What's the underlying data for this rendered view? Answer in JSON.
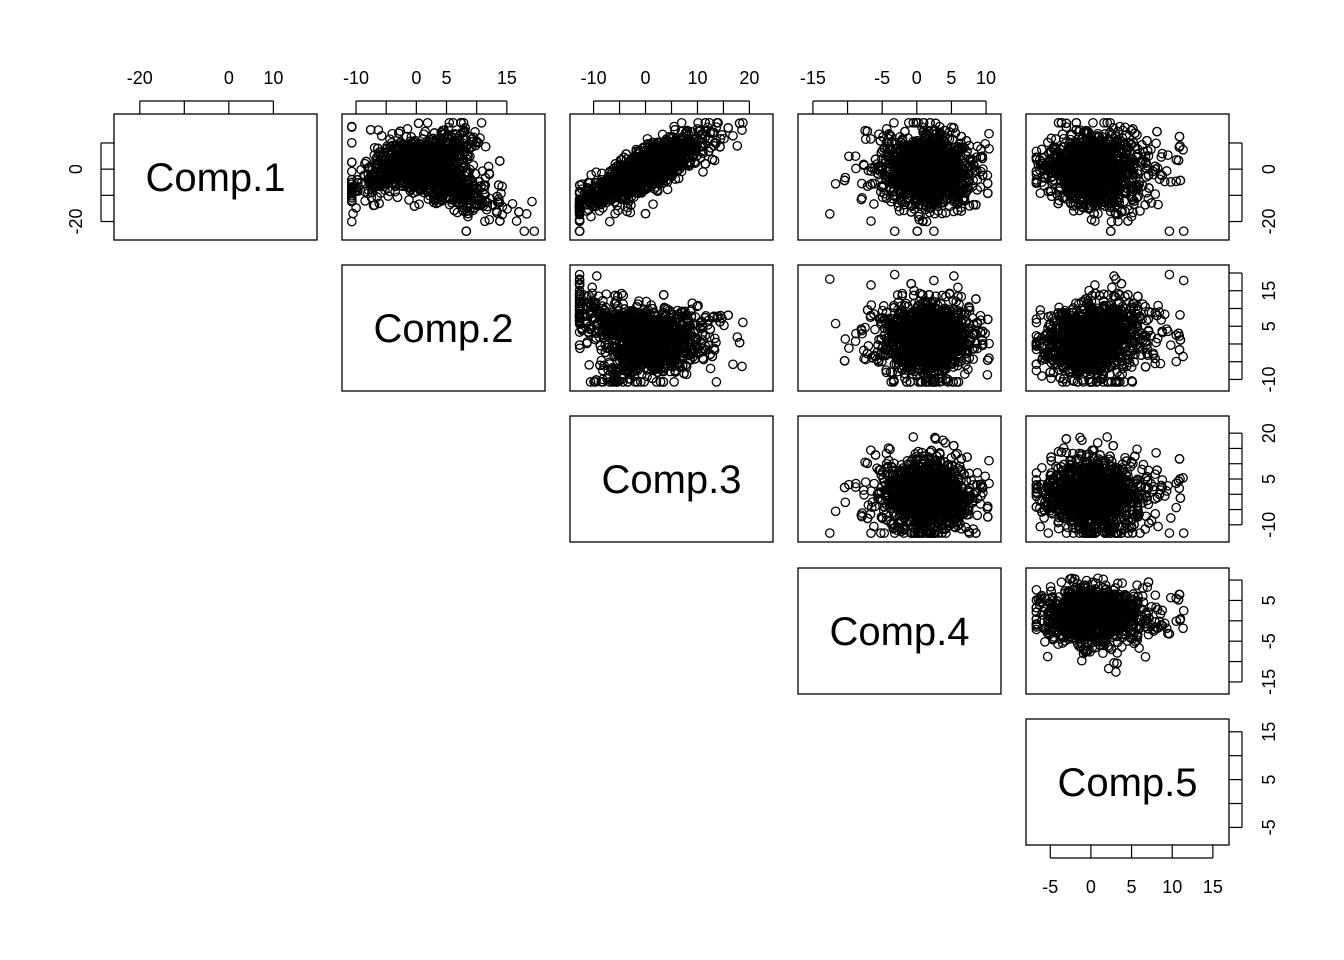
{
  "chart_data": {
    "type": "scatter",
    "plot_kind": "pairs (upper panels only)",
    "variables": [
      {
        "name": "Comp.1",
        "range": [
          -24,
          18
        ]
      },
      {
        "name": "Comp.2",
        "range": [
          -11,
          20
        ]
      },
      {
        "name": "Comp.3",
        "range": [
          -13,
          23
        ]
      },
      {
        "name": "Comp.4",
        "range": [
          -16,
          11
        ]
      },
      {
        "name": "Comp.5",
        "range": [
          -7,
          16
        ]
      }
    ],
    "tick_labels": {
      "Comp.1": [
        "-20",
        "0",
        "10"
      ],
      "Comp.2": [
        "-10",
        "0",
        "5",
        "15"
      ],
      "Comp.3": [
        "-10",
        "0",
        "10",
        "20"
      ],
      "Comp.4": [
        "-15",
        "-5",
        "0",
        "5",
        "10"
      ],
      "Comp.5": [
        "-5",
        "0",
        "5",
        "10",
        "15"
      ],
      "right_Comp.1": [
        "0",
        "-20"
      ],
      "right_Comp.2": [
        "15",
        "5",
        "-10"
      ],
      "right_Comp.3": [
        "20",
        "5",
        "-10"
      ],
      "right_Comp.4": [
        "5",
        "-5",
        "-15"
      ],
      "right_Comp.5": [
        "15",
        "5",
        "-5"
      ]
    },
    "tick_values": {
      "Comp.1": [
        -20,
        -10,
        0,
        10
      ],
      "Comp.2": [
        -10,
        -5,
        0,
        5,
        10,
        15
      ],
      "Comp.3": [
        -10,
        -5,
        0,
        5,
        10,
        15,
        20
      ],
      "Comp.4": [
        -15,
        -10,
        -5,
        0,
        5,
        10
      ],
      "Comp.5": [
        -5,
        0,
        5,
        10,
        15
      ]
    },
    "right_tick_values": {
      "Comp.1": [
        10,
        0,
        -10,
        -20
      ],
      "Comp.2": [
        20,
        15,
        10,
        5,
        0,
        -5,
        -10
      ],
      "Comp.3": [
        20,
        15,
        10,
        5,
        0,
        -5,
        -10
      ],
      "Comp.4": [
        10,
        5,
        0,
        -5,
        -10,
        -15
      ],
      "Comp.5": [
        15,
        10,
        5,
        0,
        -5
      ]
    },
    "n_points_per_panel": 1500,
    "point_shape": "open circle",
    "pair_correlations": [
      {
        "pair": [
          "Comp.1",
          "Comp.2"
        ],
        "pattern": "sideways V / chevron"
      },
      {
        "pair": [
          "Comp.1",
          "Comp.3"
        ],
        "pattern": "positive S-shaped"
      },
      {
        "pair": [
          "Comp.1",
          "Comp.4"
        ],
        "pattern": "dense rectangular blob"
      },
      {
        "pair": [
          "Comp.1",
          "Comp.5"
        ],
        "pattern": "hourglass"
      },
      {
        "pair": [
          "Comp.2",
          "Comp.3"
        ],
        "pattern": "funnel, dense at top"
      },
      {
        "pair": [
          "Comp.2",
          "Comp.4"
        ],
        "pattern": "rectangular blob"
      },
      {
        "pair": [
          "Comp.2",
          "Comp.5"
        ],
        "pattern": "curved positive"
      },
      {
        "pair": [
          "Comp.3",
          "Comp.4"
        ],
        "pattern": "slight negative"
      },
      {
        "pair": [
          "Comp.3",
          "Comp.5"
        ],
        "pattern": "blob, upper tail"
      },
      {
        "pair": [
          "Comp.4",
          "Comp.5"
        ],
        "pattern": "blob, right tail"
      }
    ]
  }
}
